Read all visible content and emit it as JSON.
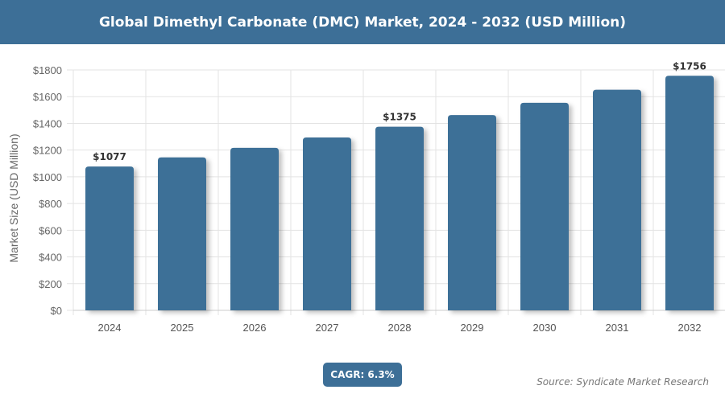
{
  "header": {
    "title": "Global Dimethyl Carbonate (DMC) Market, 2024 - 2032 (USD Million)"
  },
  "footer": {
    "cagr": "CAGR: 6.3%",
    "source": "Source: Syndicate Market Research"
  },
  "chart_data": {
    "type": "bar",
    "title": "Global Dimethyl Carbonate (DMC) Market, 2024 - 2032 (USD Million)",
    "ylabel": "Market Size (USD Million)",
    "xlabel": "",
    "categories": [
      "2024",
      "2025",
      "2026",
      "2027",
      "2028",
      "2029",
      "2030",
      "2031",
      "2032"
    ],
    "values": [
      1077,
      1145,
      1217,
      1294,
      1375,
      1462,
      1554,
      1652,
      1756
    ],
    "data_labels": {
      "0": "$1077",
      "4": "$1375",
      "8": "$1756"
    },
    "ylim": [
      0,
      1800
    ],
    "yticks": [
      "$0",
      "$200",
      "$400",
      "$600",
      "$800",
      "$1000",
      "$1200",
      "$1400",
      "$1600",
      "$1800"
    ],
    "grid": true,
    "bar_color": "#3d6f97"
  }
}
